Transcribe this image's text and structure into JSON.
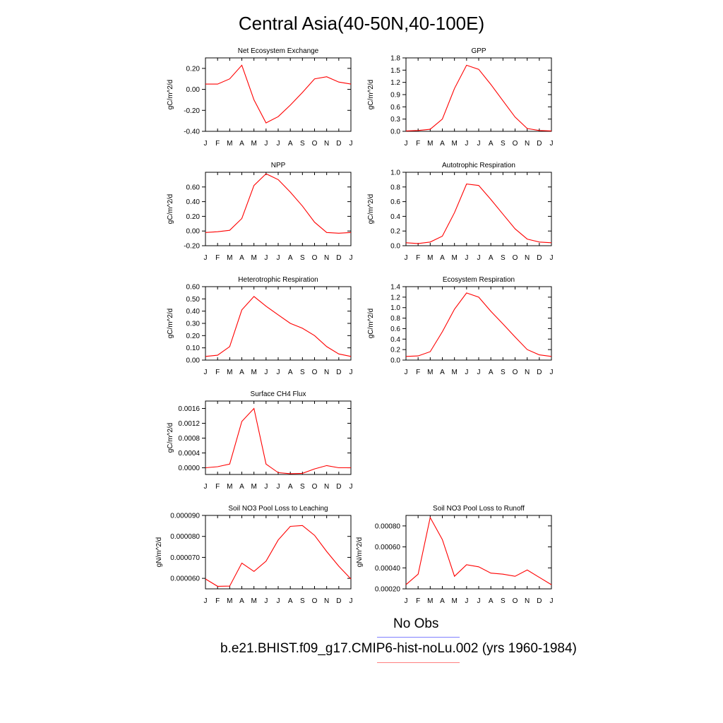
{
  "page": {
    "title": "Central Asia(40-50N,40-100E)",
    "legend": [
      {
        "label": "No Obs",
        "color": "#8080ff"
      },
      {
        "label": "b.e21.BHIST.f09_g17.CMIP6-hist-noLu.002 (yrs 1960-1984)",
        "color": "#ff8080"
      }
    ]
  },
  "chart_data": [
    {
      "type": "line",
      "title": "Net Ecosystem Exchange",
      "ylabel": "gC/m^2/d",
      "categories": [
        "J",
        "F",
        "M",
        "A",
        "M",
        "J",
        "J",
        "A",
        "S",
        "O",
        "N",
        "D",
        "J"
      ],
      "ylim": [
        -0.4,
        0.3
      ],
      "yticks": [
        -0.4,
        -0.2,
        0.0,
        0.2
      ],
      "ytick_labels": [
        "-0.40",
        "-0.20",
        "0.00",
        "0.20"
      ],
      "series": [
        {
          "color": "#ff0000",
          "values": [
            0.05,
            0.05,
            0.1,
            0.23,
            -0.1,
            -0.32,
            -0.26,
            -0.15,
            -0.03,
            0.1,
            0.12,
            0.07,
            0.05
          ]
        }
      ]
    },
    {
      "type": "line",
      "title": "GPP",
      "ylabel": "gC/m^2/d",
      "categories": [
        "J",
        "F",
        "M",
        "A",
        "M",
        "J",
        "J",
        "A",
        "S",
        "O",
        "N",
        "D",
        "J"
      ],
      "ylim": [
        0.0,
        1.8
      ],
      "yticks": [
        0.0,
        0.3,
        0.6,
        0.9,
        1.2,
        1.5,
        1.8
      ],
      "ytick_labels": [
        "0.0",
        "0.3",
        "0.6",
        "0.9",
        "1.2",
        "1.5",
        "1.8"
      ],
      "series": [
        {
          "color": "#ff0000",
          "values": [
            0.01,
            0.02,
            0.05,
            0.3,
            1.05,
            1.62,
            1.52,
            1.15,
            0.75,
            0.35,
            0.07,
            0.02,
            0.01
          ]
        }
      ]
    },
    {
      "type": "line",
      "title": "NPP",
      "ylabel": "gC/m^2/d",
      "categories": [
        "J",
        "F",
        "M",
        "A",
        "M",
        "J",
        "J",
        "A",
        "S",
        "O",
        "N",
        "D",
        "J"
      ],
      "ylim": [
        -0.2,
        0.8
      ],
      "yticks": [
        -0.2,
        0.0,
        0.2,
        0.4,
        0.6
      ],
      "ytick_labels": [
        "-0.20",
        "0.00",
        "0.20",
        "0.40",
        "0.60"
      ],
      "series": [
        {
          "color": "#ff0000",
          "values": [
            -0.02,
            -0.01,
            0.01,
            0.17,
            0.62,
            0.78,
            0.7,
            0.53,
            0.34,
            0.12,
            -0.02,
            -0.03,
            -0.02
          ]
        }
      ]
    },
    {
      "type": "line",
      "title": "Autotrophic Respiration",
      "ylabel": "gC/m^2/d",
      "categories": [
        "J",
        "F",
        "M",
        "A",
        "M",
        "J",
        "J",
        "A",
        "S",
        "O",
        "N",
        "D",
        "J"
      ],
      "ylim": [
        0.0,
        1.0
      ],
      "yticks": [
        0.0,
        0.2,
        0.4,
        0.6,
        0.8,
        1.0
      ],
      "ytick_labels": [
        "0.0",
        "0.2",
        "0.4",
        "0.6",
        "0.8",
        "1.0"
      ],
      "series": [
        {
          "color": "#ff0000",
          "values": [
            0.04,
            0.03,
            0.05,
            0.13,
            0.45,
            0.84,
            0.82,
            0.63,
            0.43,
            0.23,
            0.09,
            0.05,
            0.04
          ]
        }
      ]
    },
    {
      "type": "line",
      "title": "Heterotrophic Respiration",
      "ylabel": "gC/m^2/d",
      "categories": [
        "J",
        "F",
        "M",
        "A",
        "M",
        "J",
        "J",
        "A",
        "S",
        "O",
        "N",
        "D",
        "J"
      ],
      "ylim": [
        0.0,
        0.6
      ],
      "yticks": [
        0.0,
        0.1,
        0.2,
        0.3,
        0.4,
        0.5,
        0.6
      ],
      "ytick_labels": [
        "0.00",
        "0.10",
        "0.20",
        "0.30",
        "0.40",
        "0.50",
        "0.60"
      ],
      "series": [
        {
          "color": "#ff0000",
          "values": [
            0.03,
            0.04,
            0.11,
            0.41,
            0.52,
            0.44,
            0.37,
            0.3,
            0.26,
            0.2,
            0.11,
            0.05,
            0.03
          ]
        }
      ]
    },
    {
      "type": "line",
      "title": "Ecosystem Respiration",
      "ylabel": "gC/m^2/d",
      "categories": [
        "J",
        "F",
        "M",
        "A",
        "M",
        "J",
        "J",
        "A",
        "S",
        "O",
        "N",
        "D",
        "J"
      ],
      "ylim": [
        0.0,
        1.4
      ],
      "yticks": [
        0.0,
        0.2,
        0.4,
        0.6,
        0.8,
        1.0,
        1.2,
        1.4
      ],
      "ytick_labels": [
        "0.0",
        "0.2",
        "0.4",
        "0.6",
        "0.8",
        "1.0",
        "1.2",
        "1.4"
      ],
      "series": [
        {
          "color": "#ff0000",
          "values": [
            0.07,
            0.08,
            0.16,
            0.54,
            0.97,
            1.28,
            1.2,
            0.93,
            0.69,
            0.44,
            0.2,
            0.1,
            0.07
          ]
        }
      ]
    },
    {
      "type": "line",
      "title": "Surface CH4 Flux",
      "ylabel": "gC/m^2/d",
      "categories": [
        "J",
        "F",
        "M",
        "A",
        "M",
        "J",
        "J",
        "A",
        "S",
        "O",
        "N",
        "D",
        "J"
      ],
      "ylim": [
        -0.00018,
        0.0018
      ],
      "yticks": [
        0.0,
        0.0004,
        0.0008,
        0.0012,
        0.0016
      ],
      "ytick_labels": [
        "0.0000",
        "0.0004",
        "0.0008",
        "0.0012",
        "0.0016"
      ],
      "series": [
        {
          "color": "#ff0000",
          "values": [
            0.0,
            3e-05,
            0.0001,
            0.00125,
            0.0016,
            0.0001,
            -0.00013,
            -0.00016,
            -0.00015,
            -3e-05,
            6e-05,
            0.0,
            0.0
          ]
        }
      ]
    },
    {
      "type": "line",
      "title": "Soil NO3 Pool Loss to Leaching",
      "ylabel": "gN/m^2/d",
      "categories": [
        "J",
        "F",
        "M",
        "A",
        "M",
        "J",
        "J",
        "A",
        "S",
        "O",
        "N",
        "D",
        "J"
      ],
      "ylim": [
        5.5e-05,
        9e-05
      ],
      "yticks": [
        6e-05,
        7e-05,
        8e-05,
        9e-05
      ],
      "ytick_labels": [
        "0.000060",
        "0.000070",
        "0.000080",
        "0.000090"
      ],
      "series": [
        {
          "color": "#ff0000",
          "values": [
            5.97e-05,
            5.62e-05,
            5.63e-05,
            6.73e-05,
            6.33e-05,
            6.82e-05,
            7.83e-05,
            8.48e-05,
            8.52e-05,
            8.05e-05,
            7.28e-05,
            6.58e-05,
            5.97e-05
          ]
        }
      ]
    },
    {
      "type": "line",
      "title": "Soil NO3 Pool Loss to Runoff",
      "ylabel": "gN/m^2/d",
      "categories": [
        "J",
        "F",
        "M",
        "A",
        "M",
        "J",
        "J",
        "A",
        "S",
        "O",
        "N",
        "D",
        "J"
      ],
      "ylim": [
        0.0002,
        0.0009
      ],
      "yticks": [
        0.0002,
        0.0004,
        0.0006,
        0.0008
      ],
      "ytick_labels": [
        "0.00020",
        "0.00040",
        "0.00060",
        "0.00080"
      ],
      "series": [
        {
          "color": "#ff0000",
          "values": [
            0.00024,
            0.00034,
            0.00088,
            0.00067,
            0.00032,
            0.00043,
            0.00041,
            0.00035,
            0.00034,
            0.00032,
            0.00038,
            0.00031,
            0.00024
          ]
        }
      ]
    }
  ]
}
